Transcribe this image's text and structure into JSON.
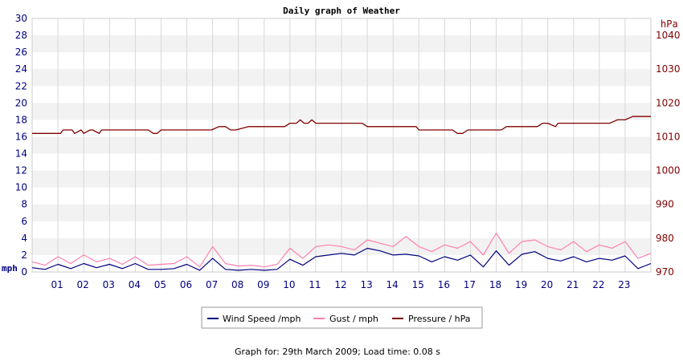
{
  "chart_data": {
    "type": "line",
    "title": "Daily graph of Weather",
    "x": [
      "01",
      "02",
      "03",
      "04",
      "05",
      "06",
      "07",
      "08",
      "09",
      "10",
      "11",
      "12",
      "13",
      "14",
      "15",
      "16",
      "17",
      "18",
      "19",
      "20",
      "21",
      "22",
      "23"
    ],
    "left_axis": {
      "unit": "mph",
      "ylim": [
        0,
        30
      ],
      "ticks": [
        0,
        2,
        4,
        6,
        8,
        10,
        12,
        14,
        16,
        18,
        20,
        22,
        24,
        26,
        28,
        30
      ]
    },
    "right_axis": {
      "unit": "hPa",
      "ylim": [
        970,
        1045
      ],
      "ticks": [
        970,
        980,
        990,
        1000,
        1010,
        1020,
        1030,
        1040
      ]
    },
    "grid": true,
    "legend_position": "bottom",
    "series": [
      {
        "name": "Wind Speed /mph",
        "axis": "left",
        "color": "#000080",
        "x": [
          0,
          0.5,
          1,
          1.5,
          2,
          2.5,
          3,
          3.5,
          4,
          4.5,
          5,
          5.5,
          6,
          6.5,
          7,
          7.5,
          8,
          8.5,
          9,
          9.5,
          10,
          10.5,
          11,
          11.5,
          12,
          12.5,
          13,
          13.5,
          14,
          14.5,
          15,
          15.5,
          16,
          16.5,
          17,
          17.5,
          18,
          18.5,
          19,
          19.5,
          20,
          20.5,
          21,
          21.5,
          22,
          22.5,
          23,
          23.5,
          24
        ],
        "values": [
          0.5,
          0.3,
          0.9,
          0.4,
          1.0,
          0.5,
          0.9,
          0.4,
          1.0,
          0.3,
          0.3,
          0.4,
          0.9,
          0.2,
          1.6,
          0.3,
          0.2,
          0.3,
          0.2,
          0.3,
          1.5,
          0.8,
          1.8,
          2.0,
          2.2,
          2.0,
          2.8,
          2.5,
          2.0,
          2.1,
          1.9,
          1.2,
          1.8,
          1.4,
          2.0,
          0.6,
          2.5,
          0.8,
          2.1,
          2.4,
          1.6,
          1.3,
          1.8,
          1.2,
          1.6,
          1.4,
          1.9,
          0.4,
          1.0
        ]
      },
      {
        "name": "Gust / mph",
        "axis": "left",
        "color": "#ff80b0",
        "x": [
          0,
          0.5,
          1,
          1.5,
          2,
          2.5,
          3,
          3.5,
          4,
          4.5,
          5,
          5.5,
          6,
          6.5,
          7,
          7.5,
          8,
          8.5,
          9,
          9.5,
          10,
          10.5,
          11,
          11.5,
          12,
          12.5,
          13,
          13.5,
          14,
          14.5,
          15,
          15.5,
          16,
          16.5,
          17,
          17.5,
          18,
          18.5,
          19,
          19.5,
          20,
          20.5,
          21,
          21.5,
          22,
          22.5,
          23,
          23.5,
          24
        ],
        "values": [
          1.2,
          0.8,
          1.8,
          1.0,
          2.0,
          1.2,
          1.6,
          0.9,
          1.8,
          0.8,
          0.9,
          1.0,
          1.8,
          0.6,
          3.0,
          1.0,
          0.7,
          0.8,
          0.6,
          0.9,
          2.8,
          1.6,
          3.0,
          3.2,
          3.0,
          2.6,
          3.8,
          3.4,
          3.0,
          4.2,
          3.0,
          2.4,
          3.2,
          2.8,
          3.6,
          2.0,
          4.6,
          2.2,
          3.6,
          3.8,
          3.0,
          2.6,
          3.6,
          2.4,
          3.2,
          2.8,
          3.6,
          1.6,
          2.2
        ]
      },
      {
        "name": "Pressure / hPa",
        "axis": "right",
        "color": "#800000",
        "x": [
          0,
          1.1,
          1.2,
          1.55,
          1.65,
          1.9,
          2.0,
          2.25,
          2.35,
          2.6,
          2.7,
          3.1,
          3.25,
          3.5,
          4.3,
          4.5,
          4.7,
          4.85,
          5.0,
          6.0,
          6.95,
          7.25,
          7.5,
          7.7,
          7.9,
          8.4,
          9.2,
          9.5,
          9.8,
          10.0,
          10.25,
          10.4,
          10.55,
          10.7,
          10.85,
          11.0,
          11.75,
          12.0,
          12.8,
          13.0,
          14.0,
          14.9,
          15.0,
          16.3,
          16.5,
          16.7,
          16.9,
          17.5,
          18.2,
          18.4,
          19.0,
          19.6,
          19.8,
          20.0,
          20.3,
          20.4,
          22.2,
          22.4,
          22.7,
          23.0,
          23.3,
          24.0
        ],
        "values": [
          1011,
          1011,
          1012,
          1012,
          1011,
          1012,
          1011,
          1012,
          1012,
          1011,
          1012,
          1012,
          1012,
          1012,
          1012,
          1012,
          1011,
          1011,
          1012,
          1012,
          1012,
          1013,
          1013,
          1012,
          1012,
          1013,
          1013,
          1013,
          1013,
          1014,
          1014,
          1015,
          1014,
          1014,
          1015,
          1014,
          1014,
          1014,
          1014,
          1013,
          1013,
          1013,
          1012,
          1012,
          1011,
          1011,
          1012,
          1012,
          1012,
          1013,
          1013,
          1013,
          1014,
          1014,
          1013,
          1014,
          1014,
          1014,
          1015,
          1015,
          1016,
          1016
        ]
      }
    ]
  },
  "footer": "Graph for: 29th March 2009; Load time: 0.08 s",
  "colors": {
    "band": "#f2f2f2",
    "grid_line": "#d8d8d8",
    "left_axis": "#000080",
    "right_axis": "#800000"
  }
}
